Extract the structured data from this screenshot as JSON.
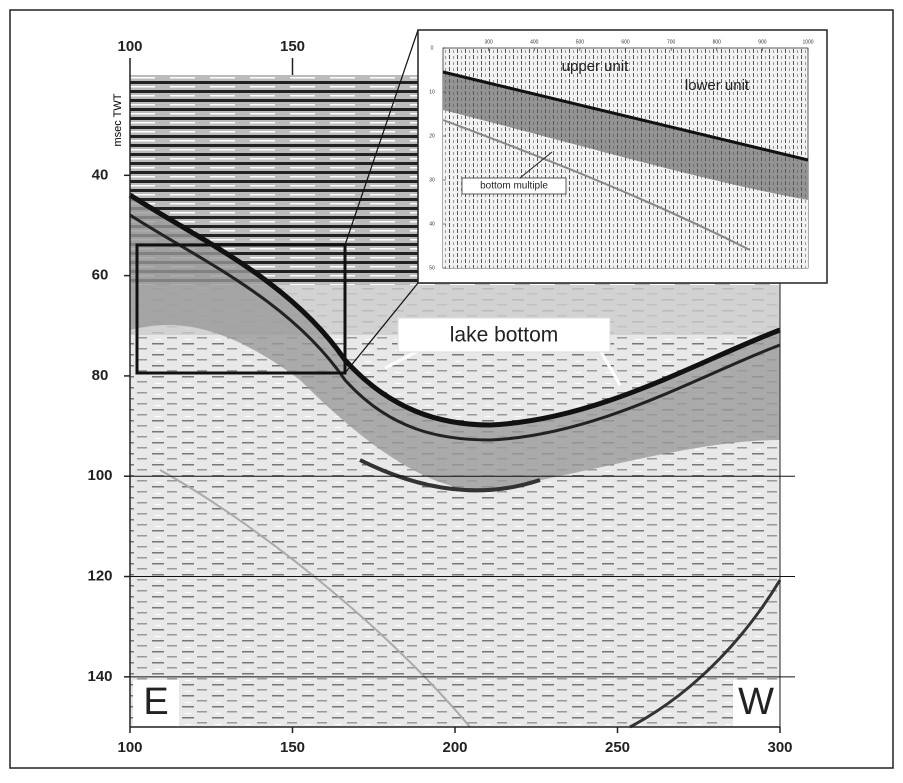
{
  "figure": {
    "main": {
      "xlim": [
        100,
        300
      ],
      "ylim": [
        20,
        150
      ],
      "x_ticks_top": [
        100,
        150
      ],
      "x_ticks_bottom": [
        100,
        150,
        200,
        250,
        300
      ],
      "y_ticks": [
        40,
        60,
        80,
        100,
        120,
        140
      ],
      "y_label": "msec TWT"
    },
    "annotations": {
      "lake_bottom": "lake bottom",
      "east": "E",
      "west": "W"
    },
    "inset": {
      "xlim": [
        200,
        1000
      ],
      "ylim": [
        0,
        50
      ],
      "x_ticks": [
        300,
        400,
        500,
        600,
        700,
        800,
        900,
        1000
      ],
      "y_ticks": [
        0,
        10,
        20,
        30,
        40,
        50
      ],
      "upper_unit": "upper unit",
      "lower_unit": "lower unit",
      "bottom_multiple": "bottom multiple"
    }
  }
}
